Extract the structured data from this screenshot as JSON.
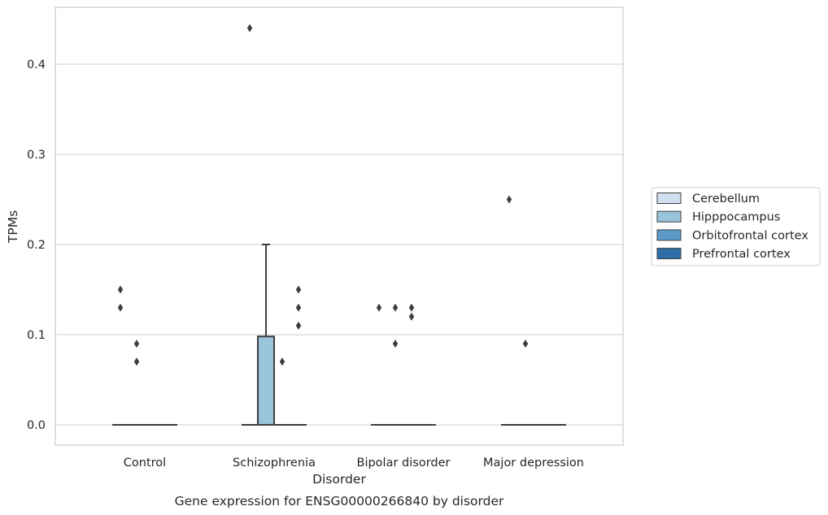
{
  "chart_data": {
    "type": "box",
    "title": "Gene expression for ENSG00000266840 by disorder",
    "xlabel": "Disorder",
    "ylabel": "TPMs",
    "ylim": [
      -0.022,
      0.465
    ],
    "yticks": [
      0.0,
      0.1,
      0.2,
      0.3,
      0.4
    ],
    "ytick_labels": [
      "0.0",
      "0.1",
      "0.2",
      "0.3",
      "0.4"
    ],
    "grid": true,
    "legend_position": "right",
    "categories": [
      "Control",
      "Schizophrenia",
      "Bipolar disorder",
      "Major depression"
    ],
    "series": [
      {
        "name": "Cerebellum",
        "color": "#d1e0f0",
        "boxes": [
          {
            "q1": 0,
            "median": 0,
            "q3": 0,
            "whisker_low": 0,
            "whisker_high": 0,
            "outliers": [
              0.15,
              0.13
            ]
          },
          {
            "q1": 0,
            "median": 0,
            "q3": 0,
            "whisker_low": 0,
            "whisker_high": 0,
            "outliers": [
              0.44
            ]
          },
          {
            "q1": 0,
            "median": 0,
            "q3": 0,
            "whisker_low": 0,
            "whisker_high": 0,
            "outliers": [
              0.13
            ]
          },
          {
            "q1": 0,
            "median": 0,
            "q3": 0,
            "whisker_low": 0,
            "whisker_high": 0,
            "outliers": [
              0.25
            ]
          }
        ]
      },
      {
        "name": "Hipppocampus",
        "color": "#9ac3dc",
        "boxes": [
          {
            "q1": 0,
            "median": 0,
            "q3": 0,
            "whisker_low": 0,
            "whisker_high": 0,
            "outliers": [
              0.09,
              0.07
            ]
          },
          {
            "q1": 0,
            "median": 0,
            "q3": 0.098,
            "whisker_low": 0,
            "whisker_high": 0.2,
            "outliers": []
          },
          {
            "q1": 0,
            "median": 0,
            "q3": 0,
            "whisker_low": 0,
            "whisker_high": 0,
            "outliers": [
              0.13,
              0.09
            ]
          },
          {
            "q1": 0,
            "median": 0,
            "q3": 0,
            "whisker_low": 0,
            "whisker_high": 0,
            "outliers": [
              0.09
            ]
          }
        ]
      },
      {
        "name": "Orbitofrontal cortex",
        "color": "#5b9ac8",
        "boxes": [
          {
            "q1": 0,
            "median": 0,
            "q3": 0,
            "whisker_low": 0,
            "whisker_high": 0,
            "outliers": []
          },
          {
            "q1": 0,
            "median": 0,
            "q3": 0,
            "whisker_low": 0,
            "whisker_high": 0,
            "outliers": [
              0.07
            ]
          },
          {
            "q1": 0,
            "median": 0,
            "q3": 0,
            "whisker_low": 0,
            "whisker_high": 0,
            "outliers": [
              0.13,
              0.12
            ]
          },
          {
            "q1": 0,
            "median": 0,
            "q3": 0,
            "whisker_low": 0,
            "whisker_high": 0,
            "outliers": []
          }
        ]
      },
      {
        "name": "Prefrontal cortex",
        "color": "#2f6ea6",
        "boxes": [
          {
            "q1": 0,
            "median": 0,
            "q3": 0,
            "whisker_low": 0,
            "whisker_high": 0,
            "outliers": []
          },
          {
            "q1": 0,
            "median": 0,
            "q3": 0,
            "whisker_low": 0,
            "whisker_high": 0,
            "outliers": [
              0.15,
              0.13,
              0.11
            ]
          },
          {
            "q1": 0,
            "median": 0,
            "q3": 0,
            "whisker_low": 0,
            "whisker_high": 0,
            "outliers": []
          },
          {
            "q1": 0,
            "median": 0,
            "q3": 0,
            "whisker_low": 0,
            "whisker_high": 0,
            "outliers": []
          }
        ]
      }
    ]
  }
}
